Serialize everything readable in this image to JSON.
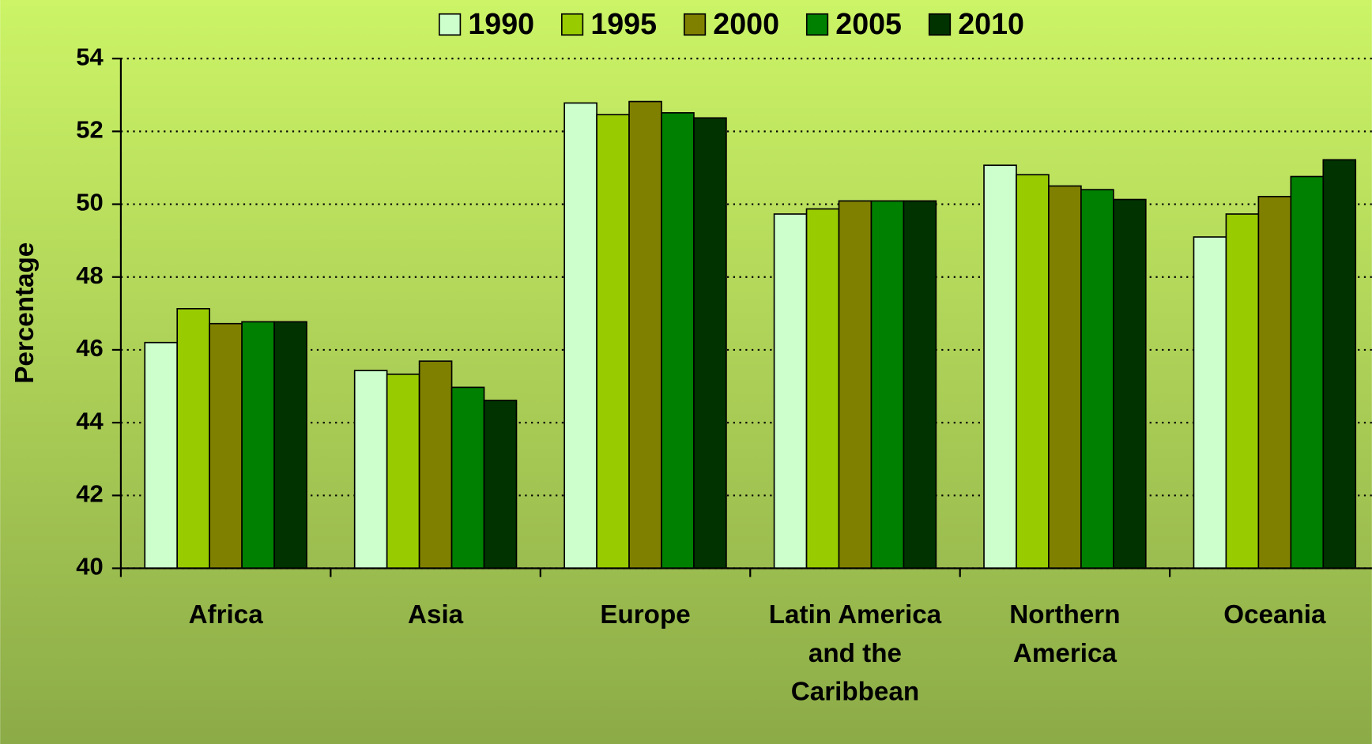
{
  "chart_data": {
    "type": "bar",
    "y_label": "Percentage",
    "categories": [
      "Africa",
      "Asia",
      "Europe",
      "Latin America and the Caribbean",
      "Northern America",
      "Oceania"
    ],
    "series": [
      {
        "name": "1990",
        "color": "#ccffcc",
        "values": [
          46.2,
          45.43,
          52.78,
          49.73,
          51.07,
          49.1
        ]
      },
      {
        "name": "1995",
        "color": "#99cc00",
        "values": [
          47.13,
          45.33,
          52.46,
          49.87,
          50.81,
          49.73
        ]
      },
      {
        "name": "2000",
        "color": "#808000",
        "values": [
          46.72,
          45.69,
          52.82,
          50.09,
          50.5,
          50.21
        ]
      },
      {
        "name": "2005",
        "color": "#008000",
        "values": [
          46.77,
          44.97,
          52.51,
          50.09,
          50.4,
          50.76
        ]
      },
      {
        "name": "2010",
        "color": "#003300",
        "values": [
          46.77,
          44.61,
          52.37,
          50.09,
          50.13,
          51.22
        ]
      }
    ],
    "ylim": [
      40,
      54
    ],
    "yticks": [
      40,
      42,
      44,
      46,
      48,
      50,
      52,
      54
    ],
    "grid": true,
    "legend": "top"
  }
}
